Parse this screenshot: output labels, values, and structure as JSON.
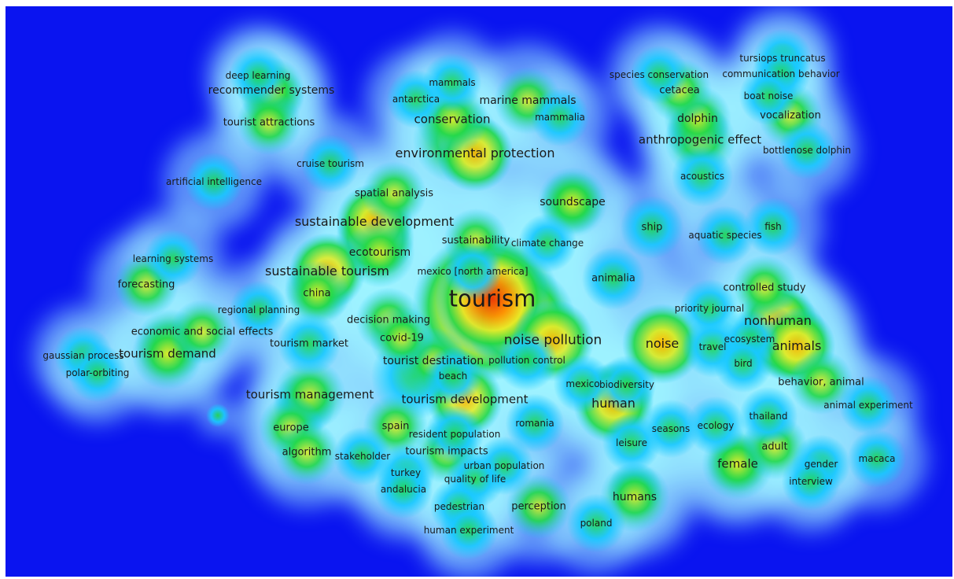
{
  "density_map": {
    "colors": {
      "background": "#0a14f0",
      "low": "#18c8ff",
      "mid": "#22d84a",
      "high": "#e6ec2a",
      "peak": "#ff2a00"
    },
    "keywords": [
      {
        "text": "tourism",
        "weight": 1.0
      },
      {
        "text": "noise pollution",
        "weight": 0.62
      },
      {
        "text": "noise",
        "weight": 0.6
      },
      {
        "text": "human",
        "weight": 0.6
      },
      {
        "text": "environmental protection",
        "weight": 0.56
      },
      {
        "text": "sustainable development",
        "weight": 0.56
      },
      {
        "text": "sustainable tourism",
        "weight": 0.56
      },
      {
        "text": "tourism development",
        "weight": 0.55
      },
      {
        "text": "nonhuman",
        "weight": 0.57
      },
      {
        "text": "animals",
        "weight": 0.57
      },
      {
        "text": "conservation",
        "weight": 0.5
      },
      {
        "text": "tourism management",
        "weight": 0.5
      },
      {
        "text": "tourism demand",
        "weight": 0.5
      },
      {
        "text": "ecotourism",
        "weight": 0.48
      },
      {
        "text": "soundscape",
        "weight": 0.48
      },
      {
        "text": "anthropogenic effect",
        "weight": 0.5
      },
      {
        "text": "female",
        "weight": 0.5
      },
      {
        "text": "humans",
        "weight": 0.48
      },
      {
        "text": "dolphin",
        "weight": 0.45
      },
      {
        "text": "recommender systems",
        "weight": 0.45
      },
      {
        "text": "marine mammals",
        "weight": 0.45
      },
      {
        "text": "tourist destination",
        "weight": 0.45
      },
      {
        "text": "spatial analysis",
        "weight": 0.42
      },
      {
        "text": "china",
        "weight": 0.43
      },
      {
        "text": "decision making",
        "weight": 0.43
      },
      {
        "text": "covid-19",
        "weight": 0.42
      },
      {
        "text": "sustainability",
        "weight": 0.42
      },
      {
        "text": "economic and social effects",
        "weight": 0.42
      },
      {
        "text": "controlled study",
        "weight": 0.43
      },
      {
        "text": "adult",
        "weight": 0.43
      },
      {
        "text": "forecasting",
        "weight": 0.42
      },
      {
        "text": "tourist attractions",
        "weight": 0.42
      },
      {
        "text": "behavior, animal",
        "weight": 0.42
      },
      {
        "text": "cetacea",
        "weight": 0.42
      },
      {
        "text": "vocalization",
        "weight": 0.42
      },
      {
        "text": "europe",
        "weight": 0.42
      },
      {
        "text": "algorithm",
        "weight": 0.42
      },
      {
        "text": "spain",
        "weight": 0.42
      },
      {
        "text": "tourism impacts",
        "weight": 0.42
      },
      {
        "text": "perception",
        "weight": 0.42
      },
      {
        "text": "tourism market",
        "weight": 0.4
      },
      {
        "text": "animalia",
        "weight": 0.4
      },
      {
        "text": "ship",
        "weight": 0.4
      },
      {
        "text": "pollution control",
        "weight": 0.38
      },
      {
        "text": "travel",
        "weight": 0.38
      },
      {
        "text": "acoustics",
        "weight": 0.38
      },
      {
        "text": "deep learning",
        "weight": 0.35
      },
      {
        "text": "mammals",
        "weight": 0.35
      },
      {
        "text": "antarctica",
        "weight": 0.35
      },
      {
        "text": "mammalia",
        "weight": 0.35
      },
      {
        "text": "cruise tourism",
        "weight": 0.35
      },
      {
        "text": "artificial intelligence",
        "weight": 0.35
      },
      {
        "text": "species conservation",
        "weight": 0.35
      },
      {
        "text": "tursiops truncatus",
        "weight": 0.35
      },
      {
        "text": "communication behavior",
        "weight": 0.35
      },
      {
        "text": "boat noise",
        "weight": 0.35
      },
      {
        "text": "bottlenose dolphin",
        "weight": 0.35
      },
      {
        "text": "climate change",
        "weight": 0.35
      },
      {
        "text": "aquatic species",
        "weight": 0.35
      },
      {
        "text": "fish",
        "weight": 0.35
      },
      {
        "text": "learning systems",
        "weight": 0.35
      },
      {
        "text": "mexico [north america]",
        "weight": 0.35
      },
      {
        "text": "priority journal",
        "weight": 0.35
      },
      {
        "text": "regional planning",
        "weight": 0.35
      },
      {
        "text": "ecosystem",
        "weight": 0.35
      },
      {
        "text": "bird",
        "weight": 0.35
      },
      {
        "text": "gaussian process",
        "weight": 0.35
      },
      {
        "text": "polar-orbiting",
        "weight": 0.35
      },
      {
        "text": "beach",
        "weight": 0.35
      },
      {
        "text": "mexico",
        "weight": 0.35
      },
      {
        "text": "biodiversity",
        "weight": 0.35
      },
      {
        "text": "animal experiment",
        "weight": 0.35
      },
      {
        "text": "romania",
        "weight": 0.35
      },
      {
        "text": "resident population",
        "weight": 0.35
      },
      {
        "text": "seasons",
        "weight": 0.35
      },
      {
        "text": "ecology",
        "weight": 0.35
      },
      {
        "text": "thailand",
        "weight": 0.35
      },
      {
        "text": "leisure",
        "weight": 0.35
      },
      {
        "text": "stakeholder",
        "weight": 0.35
      },
      {
        "text": "urban population",
        "weight": 0.35
      },
      {
        "text": "turkey",
        "weight": 0.35
      },
      {
        "text": "quality of life",
        "weight": 0.35
      },
      {
        "text": "andalucia",
        "weight": 0.35
      },
      {
        "text": "gender",
        "weight": 0.35
      },
      {
        "text": "macaca",
        "weight": 0.35
      },
      {
        "text": "interview",
        "weight": 0.35
      },
      {
        "text": "pedestrian",
        "weight": 0.35
      },
      {
        "text": "human experiment",
        "weight": 0.35
      },
      {
        "text": "poland",
        "weight": 0.35
      }
    ]
  }
}
